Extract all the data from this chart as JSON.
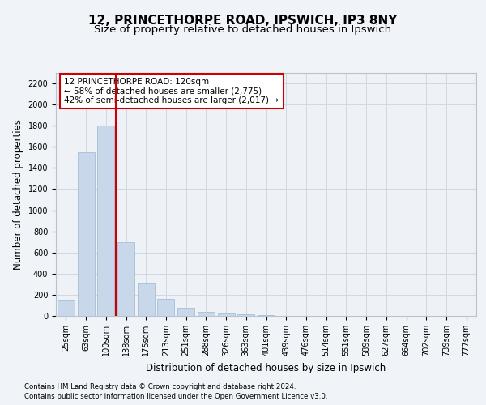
{
  "title1": "12, PRINCETHORPE ROAD, IPSWICH, IP3 8NY",
  "title2": "Size of property relative to detached houses in Ipswich",
  "xlabel": "Distribution of detached houses by size in Ipswich",
  "ylabel": "Number of detached properties",
  "categories": [
    "25sqm",
    "63sqm",
    "100sqm",
    "138sqm",
    "175sqm",
    "213sqm",
    "251sqm",
    "288sqm",
    "326sqm",
    "363sqm",
    "401sqm",
    "439sqm",
    "476sqm",
    "514sqm",
    "551sqm",
    "589sqm",
    "627sqm",
    "664sqm",
    "702sqm",
    "739sqm",
    "777sqm"
  ],
  "values": [
    150,
    1550,
    1800,
    700,
    310,
    160,
    80,
    40,
    25,
    15,
    5,
    3,
    2,
    1,
    0,
    0,
    0,
    0,
    0,
    0,
    0
  ],
  "bar_color": "#c8d8ea",
  "bar_edge_color": "#9ab8d0",
  "red_line_x": 2.5,
  "annotation_text": "12 PRINCETHORPE ROAD: 120sqm\n← 58% of detached houses are smaller (2,775)\n42% of semi-detached houses are larger (2,017) →",
  "annotation_box_color": "#ffffff",
  "annotation_box_edge": "#cc0000",
  "ylim": [
    0,
    2300
  ],
  "yticks": [
    0,
    200,
    400,
    600,
    800,
    1000,
    1200,
    1400,
    1600,
    1800,
    2000,
    2200
  ],
  "footer1": "Contains HM Land Registry data © Crown copyright and database right 2024.",
  "footer2": "Contains public sector information licensed under the Open Government Licence v3.0.",
  "bg_color": "#f0f4f8",
  "plot_bg_color": "#eef2f6",
  "grid_color": "#d0d8e4",
  "title1_fontsize": 11,
  "title2_fontsize": 9.5,
  "tick_fontsize": 7,
  "ylabel_fontsize": 8.5,
  "xlabel_fontsize": 8.5,
  "ann_fontsize": 7.5
}
